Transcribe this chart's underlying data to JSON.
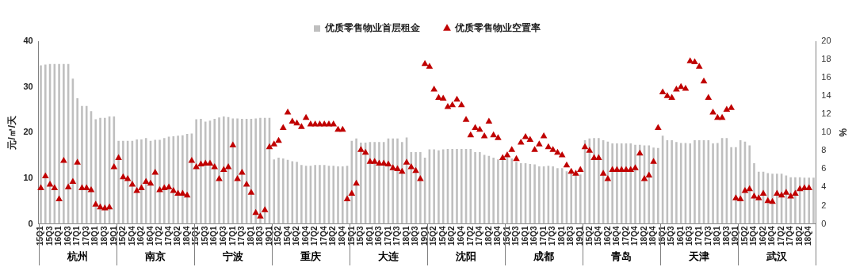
{
  "chart_data": {
    "type": "bar",
    "ylabel": "元/㎡/天",
    "y2label": "%",
    "legend": "top",
    "marker": "triangle",
    "grid": false,
    "ylim": [
      0,
      40
    ],
    "yticks": [
      0,
      10,
      20,
      30,
      40
    ],
    "y2lim": [
      0,
      20
    ],
    "y2ticks": [
      0,
      2,
      4,
      6,
      8,
      10,
      12,
      14,
      16,
      18,
      20
    ],
    "annotations": [
      "杭州",
      "南京",
      "宁波",
      "重庆",
      "大连",
      "沈阳",
      "成都",
      "青岛",
      "天津",
      "武汉"
    ],
    "categories": [
      "15Q1",
      null,
      "15Q3",
      null,
      "16Q1",
      null,
      "16Q3",
      null,
      "17Q1",
      null,
      "17Q3",
      null,
      "18Q1",
      null,
      "18Q3",
      null,
      "19Q1",
      null,
      "15Q2",
      null,
      "15Q4",
      null,
      "16Q2",
      null,
      "16Q4",
      null,
      "17Q2",
      null,
      "17Q4",
      null,
      "18Q2",
      null,
      "18Q4",
      null,
      "15Q1",
      null,
      "15Q3",
      null,
      "16Q1",
      null,
      "16Q3",
      null,
      "17Q1",
      null,
      "17Q3",
      null,
      "18Q1",
      null,
      "18Q3",
      null,
      "19Q1",
      null,
      "15Q2",
      null,
      "15Q4",
      null,
      "16Q2",
      null,
      "16Q4",
      null,
      "17Q2",
      null,
      "17Q4",
      null,
      "18Q2",
      null,
      "18Q4",
      null,
      "15Q1",
      null,
      "15Q3",
      null,
      "16Q1",
      null,
      "16Q3",
      null,
      "17Q1",
      null,
      "17Q3",
      null,
      "18Q1",
      null,
      "18Q3",
      null,
      "19Q1",
      null,
      "15Q2",
      null,
      "15Q4",
      null,
      "16Q2",
      null,
      "16Q4",
      null,
      "17Q2",
      null,
      "17Q4",
      null,
      "18Q2",
      null,
      "18Q4",
      null,
      "15Q1",
      null,
      "15Q3",
      null,
      "16Q1",
      null,
      "16Q3",
      null,
      "17Q1",
      null,
      "17Q3",
      null,
      "18Q1",
      null,
      "18Q3",
      null,
      "19Q1",
      null,
      "15Q2",
      null,
      "15Q4",
      null,
      "16Q2",
      null,
      "16Q4",
      null,
      "17Q2",
      null,
      "17Q4",
      null,
      "18Q2",
      null,
      "18Q4",
      null,
      "15Q1",
      null,
      "15Q3",
      null,
      "16Q1",
      null,
      "16Q3",
      null,
      "17Q1",
      null,
      "17Q3",
      null,
      "18Q1",
      null,
      "18Q3",
      null,
      "19Q1",
      null,
      "15Q2",
      null,
      "15Q4",
      null,
      "16Q2",
      null,
      "16Q4",
      null,
      "17Q2",
      null,
      "17Q4",
      null,
      "18Q2",
      null,
      "18Q4",
      null
    ],
    "series": [
      {
        "name": "优质零售物业首层租金",
        "color": "#bfbfbf",
        "values": [
          34.7,
          34.9,
          35,
          35,
          35,
          35,
          35,
          31.8,
          27.5,
          25.8,
          25.8,
          24.7,
          22.9,
          23.2,
          23.2,
          23.5,
          23.5,
          18.2,
          18.2,
          18.2,
          18.2,
          18.5,
          18.5,
          18.8,
          18.2,
          18.4,
          18.4,
          18.8,
          19.1,
          19.2,
          19.3,
          19.4,
          19.7,
          19.8,
          22.9,
          23.0,
          22.4,
          22.6,
          23.0,
          23.3,
          23.5,
          23.4,
          23.1,
          23.1,
          23.0,
          23.0,
          23.0,
          23.1,
          23.2,
          23.2,
          23.2,
          14.1,
          14.5,
          14.3,
          14.0,
          13.7,
          13.6,
          12.9,
          12.7,
          12.7,
          12.9,
          12.9,
          12.9,
          12.7,
          12.7,
          12.6,
          12.6,
          12.7,
          18.2,
          18.7,
          17.8,
          17.8,
          17.9,
          17.9,
          17.9,
          17.9,
          18.7,
          18.7,
          18.7,
          17.9,
          18.9,
          15.7,
          15.7,
          15.7,
          14.5,
          16.3,
          16.3,
          16.1,
          16.3,
          16.4,
          16.4,
          16.4,
          16.4,
          16.4,
          16.4,
          15.7,
          15.7,
          15.1,
          14.9,
          14.5,
          14.1,
          14.6,
          14.6,
          14.3,
          13.6,
          13.3,
          13.3,
          13.1,
          13.0,
          12.6,
          12.6,
          12.7,
          12.6,
          12.2,
          12.2,
          11.5,
          11.1,
          10.9,
          10.8,
          18.3,
          18.7,
          18.8,
          18.8,
          18.3,
          18.0,
          17.6,
          17.6,
          17.6,
          17.6,
          17.6,
          17.3,
          17.3,
          17.2,
          17.2,
          16.7,
          16.6,
          19.3,
          18.3,
          18.3,
          17.9,
          17.7,
          17.7,
          17.6,
          18.3,
          18.3,
          18.3,
          18.3,
          17.6,
          17.7,
          18.8,
          18.8,
          16.8,
          16.8,
          18.3,
          18.0,
          17.2,
          13.3,
          11.4,
          11.4,
          11.1,
          11.0,
          11.0,
          11.0,
          10.6,
          10.2,
          10.2,
          10.2,
          10.1,
          10.1,
          10.1
        ]
      },
      {
        "name": "优质零售物业空置率",
        "type": "scatter",
        "axis": "y2",
        "color": "#c00000",
        "values": [
          3.9,
          5.2,
          4.3,
          3.9,
          2.7,
          6.9,
          4.0,
          4.6,
          6.7,
          3.9,
          3.9,
          3.7,
          2.1,
          1.8,
          1.7,
          1.8,
          6.2,
          7.2,
          5.1,
          4.9,
          4.3,
          3.6,
          3.9,
          4.6,
          4.4,
          5.6,
          3.7,
          3.9,
          4.0,
          3.6,
          3.3,
          3.3,
          3.1,
          6.9,
          6.2,
          6.5,
          6.6,
          6.6,
          6.2,
          4.9,
          5.9,
          6.2,
          8.6,
          4.9,
          5.6,
          4.3,
          3.4,
          1.2,
          0.8,
          1.5,
          8.4,
          8.7,
          9.1,
          10.5,
          12.2,
          11.2,
          11.0,
          10.6,
          11.6,
          10.9,
          10.9,
          10.9,
          10.9,
          10.9,
          10.9,
          10.3,
          10.3,
          2.7,
          3.3,
          4.4,
          8.1,
          7.8,
          6.8,
          6.8,
          6.6,
          6.6,
          6.5,
          6.1,
          6.0,
          5.7,
          6.7,
          6.2,
          5.8,
          4.9,
          17.5,
          17.2,
          14.7,
          13.8,
          13.7,
          12.8,
          13.0,
          13.6,
          13.0,
          11.4,
          9.7,
          10.5,
          10.3,
          9.6,
          11.2,
          9.7,
          9.4,
          7.2,
          7.5,
          8.1,
          7.1,
          8.9,
          9.5,
          9.2,
          8.1,
          8.7,
          9.6,
          8.4,
          8.1,
          7.8,
          7.5,
          6.4,
          5.7,
          5.5,
          5.9,
          8.4,
          8.0,
          7.2,
          7.2,
          5.5,
          4.9,
          5.9,
          5.9,
          5.9,
          5.9,
          5.9,
          6.1,
          7.7,
          4.9,
          5.3,
          6.8,
          10.5,
          14.4,
          14.0,
          13.8,
          14.7,
          15.0,
          14.8,
          17.8,
          17.7,
          17.2,
          15.6,
          13.8,
          12.2,
          11.6,
          11.6,
          12.5,
          12.7,
          2.8,
          2.7,
          3.6,
          3.8,
          3.0,
          2.8,
          3.3,
          2.5,
          2.4,
          3.3,
          3.1,
          3.4,
          3.0,
          3.3,
          3.8,
          3.9,
          3.9,
          null
        ]
      }
    ]
  }
}
